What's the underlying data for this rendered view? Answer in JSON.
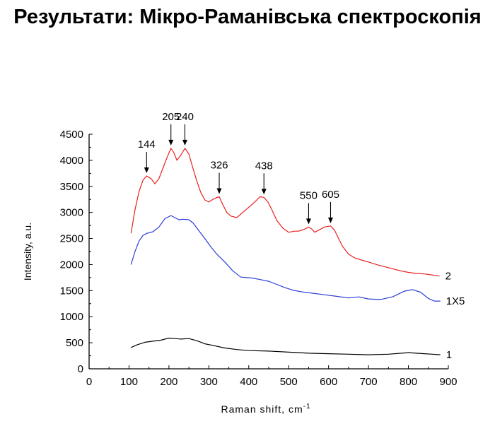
{
  "title": "Результати: Мікро-Раманівська спектроскопія",
  "chart_data": {
    "type": "line",
    "xlabel": "Raman shift, cm",
    "xlabel_sup": "-1",
    "ylabel": "Intensity, a.u.",
    "xlim": [
      0,
      900
    ],
    "ylim": [
      0,
      4500
    ],
    "x_ticks": [
      0,
      100,
      200,
      300,
      400,
      500,
      600,
      700,
      800,
      900
    ],
    "y_ticks": [
      0,
      500,
      1000,
      1500,
      2000,
      2500,
      3000,
      3500,
      4000,
      4500
    ],
    "colors": {
      "series_2": "#e8201f",
      "series_1x5": "#2a3fd6",
      "series_1": "#000000"
    },
    "series": [
      {
        "name": "2",
        "color": "#e8201f",
        "x": [
          105,
          115,
          125,
          135,
          144,
          155,
          165,
          175,
          185,
          195,
          205,
          212,
          220,
          230,
          240,
          250,
          260,
          270,
          280,
          290,
          300,
          310,
          318,
          326,
          335,
          345,
          355,
          370,
          385,
          400,
          415,
          428,
          438,
          448,
          458,
          470,
          485,
          500,
          515,
          525,
          540,
          550,
          558,
          565,
          575,
          590,
          605,
          615,
          625,
          635,
          650,
          665,
          685,
          700,
          720,
          740,
          760,
          780,
          800,
          820,
          840,
          860,
          878
        ],
        "values": [
          2600,
          3050,
          3400,
          3620,
          3700,
          3650,
          3550,
          3650,
          3850,
          4050,
          4230,
          4150,
          4000,
          4100,
          4230,
          4120,
          3850,
          3600,
          3380,
          3240,
          3200,
          3250,
          3280,
          3300,
          3150,
          3000,
          2930,
          2900,
          3000,
          3100,
          3200,
          3300,
          3290,
          3200,
          3050,
          2850,
          2700,
          2620,
          2640,
          2640,
          2680,
          2720,
          2680,
          2620,
          2660,
          2720,
          2740,
          2660,
          2500,
          2350,
          2200,
          2130,
          2080,
          2050,
          2000,
          1960,
          1920,
          1880,
          1850,
          1830,
          1820,
          1800,
          1780
        ]
      },
      {
        "name": "1X5",
        "color": "#2a3fd6",
        "x": [
          105,
          115,
          125,
          135,
          145,
          160,
          175,
          190,
          205,
          215,
          225,
          235,
          250,
          260,
          275,
          290,
          305,
          320,
          340,
          360,
          380,
          395,
          410,
          430,
          450,
          470,
          490,
          510,
          530,
          560,
          590,
          620,
          650,
          675,
          700,
          730,
          760,
          790,
          810,
          830,
          850,
          865,
          880
        ],
        "values": [
          2000,
          2250,
          2450,
          2560,
          2600,
          2630,
          2720,
          2880,
          2940,
          2900,
          2860,
          2870,
          2860,
          2800,
          2650,
          2500,
          2340,
          2200,
          2050,
          1880,
          1760,
          1750,
          1740,
          1710,
          1680,
          1620,
          1560,
          1510,
          1480,
          1450,
          1420,
          1390,
          1360,
          1380,
          1340,
          1330,
          1380,
          1490,
          1520,
          1470,
          1350,
          1300,
          1300
        ]
      },
      {
        "name": "1",
        "color": "#000000",
        "x": [
          105,
          120,
          140,
          160,
          180,
          200,
          215,
          230,
          250,
          270,
          290,
          310,
          340,
          370,
          400,
          450,
          500,
          550,
          600,
          650,
          700,
          750,
          800,
          820,
          840,
          860,
          880
        ],
        "values": [
          410,
          460,
          510,
          530,
          550,
          590,
          580,
          570,
          580,
          540,
          480,
          450,
          400,
          370,
          350,
          340,
          320,
          300,
          290,
          280,
          270,
          280,
          310,
          300,
          290,
          280,
          270
        ]
      }
    ],
    "series_labels": [
      "2",
      "1X5",
      "1"
    ],
    "annotations": [
      {
        "text": "144",
        "x": 144,
        "y": 3700
      },
      {
        "text": "205",
        "x": 205,
        "y": 4230
      },
      {
        "text": "240",
        "x": 240,
        "y": 4230
      },
      {
        "text": "326",
        "x": 326,
        "y": 3300
      },
      {
        "text": "438",
        "x": 438,
        "y": 3290
      },
      {
        "text": "550",
        "x": 550,
        "y": 2720
      },
      {
        "text": "605",
        "x": 605,
        "y": 2740
      }
    ],
    "grid": false,
    "legend": "none"
  }
}
